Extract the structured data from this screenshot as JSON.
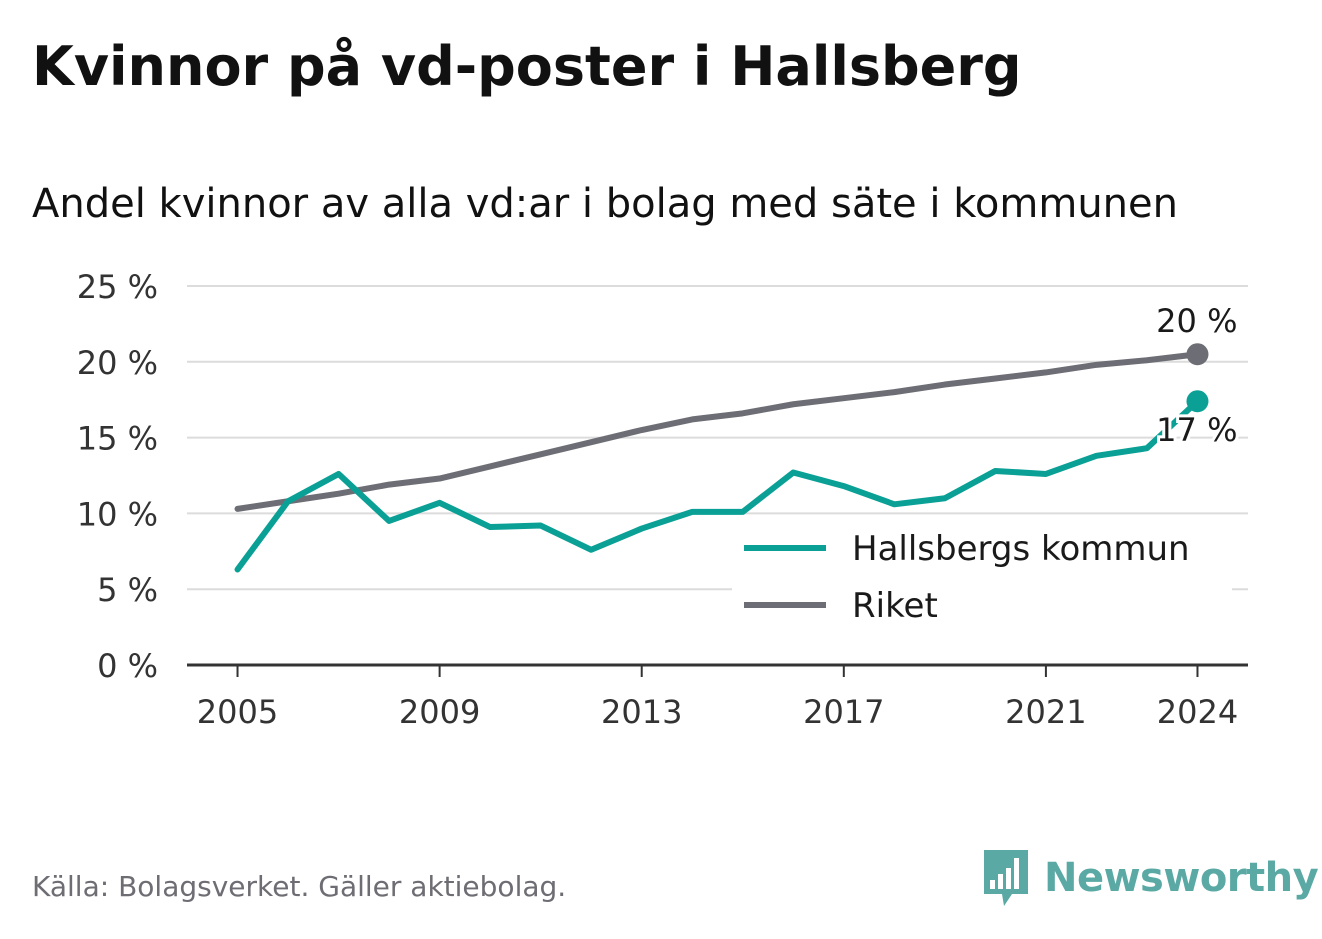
{
  "title": "Kvinnor på vd-poster i Hallsberg",
  "subtitle": "Andel kvinnor av alla vd:ar i bolag med säte i kommunen",
  "source": "Källa: Bolagsverket. Gäller aktiebolag.",
  "brand": {
    "name": "Newsworthy",
    "icon": "newsworthy-logo-icon"
  },
  "colors": {
    "hallsberg": "#0aa095",
    "riket": "#6d6d75",
    "grid": "#dcdcdc",
    "axis": "#333333",
    "brand": "#5aa9a4"
  },
  "chart_data": {
    "type": "line",
    "x": [
      2005,
      2006,
      2007,
      2008,
      2009,
      2010,
      2011,
      2012,
      2013,
      2014,
      2015,
      2016,
      2017,
      2018,
      2019,
      2020,
      2021,
      2022,
      2023,
      2024
    ],
    "series": [
      {
        "name": "Hallsbergs kommun",
        "color": "#0aa095",
        "values": [
          6.3,
          10.8,
          12.6,
          9.5,
          10.7,
          9.1,
          9.2,
          7.6,
          9.0,
          10.1,
          10.1,
          12.7,
          11.8,
          10.6,
          11.0,
          12.8,
          12.6,
          13.8,
          14.3,
          17.4
        ],
        "end_label": "17 %"
      },
      {
        "name": "Riket",
        "color": "#6d6d75",
        "values": [
          10.3,
          10.8,
          11.3,
          11.9,
          12.3,
          13.1,
          13.9,
          14.7,
          15.5,
          16.2,
          16.6,
          17.2,
          17.6,
          18.0,
          18.5,
          18.9,
          19.3,
          19.8,
          20.1,
          20.5
        ],
        "end_label": "20 %"
      }
    ],
    "xlim": [
      2004,
      2025
    ],
    "xticks": [
      2005,
      2009,
      2013,
      2017,
      2021,
      2024
    ],
    "xtick_labels": [
      "2005",
      "2009",
      "2013",
      "2017",
      "2021",
      "2024"
    ],
    "ylim": [
      0,
      25
    ],
    "yticks": [
      0,
      5,
      10,
      15,
      20,
      25
    ],
    "ytick_labels": [
      "0 %",
      "5 %",
      "10 %",
      "15 %",
      "20 %",
      "25 %"
    ],
    "xlabel": "",
    "ylabel": "",
    "grid": true,
    "legend_position": "bottom-right"
  }
}
